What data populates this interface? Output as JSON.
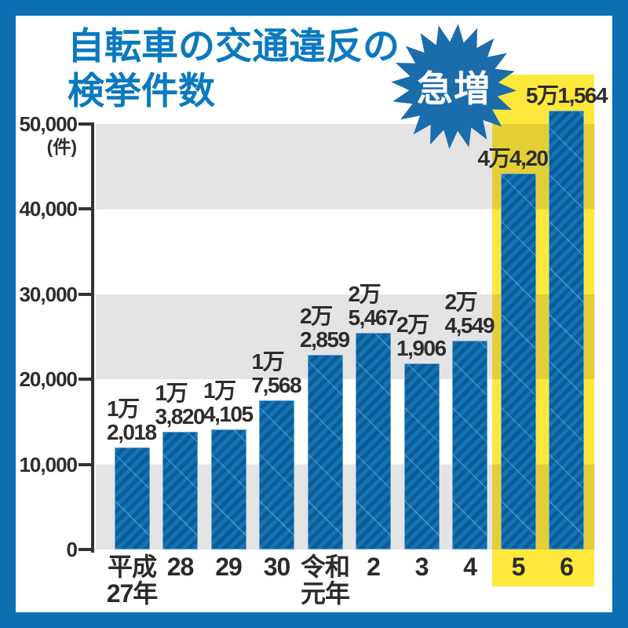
{
  "frame": {
    "border_color": "#0b6fb2"
  },
  "title": {
    "line1": "自転車の交通違反の",
    "line2": "検挙件数",
    "color": "#0b79bf"
  },
  "badge": {
    "label": "急増",
    "color": "#1b6cab",
    "text_color": "#ffffff"
  },
  "y_axis": {
    "unit": "(件)",
    "ticks": [
      {
        "label": "50,000",
        "value": 50000
      },
      {
        "label": "40,000",
        "value": 40000
      },
      {
        "label": "30,000",
        "value": 30000
      },
      {
        "label": "20,000",
        "value": 20000
      },
      {
        "label": "10,000",
        "value": 10000
      },
      {
        "label": "0",
        "value": 0
      }
    ]
  },
  "highlight": {
    "color": "#ffe83c",
    "covers_categories": [
      "5",
      "6"
    ]
  },
  "chart_data": {
    "type": "bar",
    "title": "自転車の交通違反の検挙件数",
    "xlabel": "",
    "ylabel": "件",
    "ylim": [
      0,
      50000
    ],
    "grid": "alternating horizontal bands gray/white every 10,000",
    "legend": "none",
    "annotation": "急増",
    "bar_color": "#1273b5",
    "bar_stripe_color": "#0d5c97",
    "band_color": "#e4e4e4",
    "categories": [
      "平成27年",
      "28",
      "29",
      "30",
      "令和元年",
      "2",
      "3",
      "4",
      "5",
      "6"
    ],
    "values": [
      12018,
      13820,
      14105,
      17568,
      22859,
      25467,
      21906,
      24549,
      44207,
      51564
    ],
    "bars": [
      {
        "x_label_lines": [
          "平成",
          "27年"
        ],
        "value": 12018,
        "value_label_lines": [
          "1万",
          "2,018"
        ],
        "highlighted": false
      },
      {
        "x_label_lines": [
          "28"
        ],
        "value": 13820,
        "value_label_lines": [
          "1万",
          "3,820"
        ],
        "highlighted": false
      },
      {
        "x_label_lines": [
          "29"
        ],
        "value": 14105,
        "value_label_lines": [
          "1万",
          "4,105"
        ],
        "highlighted": false
      },
      {
        "x_label_lines": [
          "30"
        ],
        "value": 17568,
        "value_label_lines": [
          "1万",
          "7,568"
        ],
        "highlighted": false
      },
      {
        "x_label_lines": [
          "令和",
          "元年"
        ],
        "value": 22859,
        "value_label_lines": [
          "2万",
          "2,859"
        ],
        "highlighted": false
      },
      {
        "x_label_lines": [
          "2"
        ],
        "value": 25467,
        "value_label_lines": [
          "2万",
          "5,467"
        ],
        "highlighted": false
      },
      {
        "x_label_lines": [
          "3"
        ],
        "value": 21906,
        "value_label_lines": [
          "2万",
          "1,906"
        ],
        "highlighted": false
      },
      {
        "x_label_lines": [
          "4"
        ],
        "value": 24549,
        "value_label_lines": [
          "2万",
          "4,549"
        ],
        "highlighted": false
      },
      {
        "x_label_lines": [
          "5"
        ],
        "value": 44207,
        "value_label_lines": [
          "4万4,207"
        ],
        "highlighted": true
      },
      {
        "x_label_lines": [
          "6"
        ],
        "value": 51564,
        "value_label_lines": [
          "5万1,564"
        ],
        "highlighted": true
      }
    ]
  }
}
